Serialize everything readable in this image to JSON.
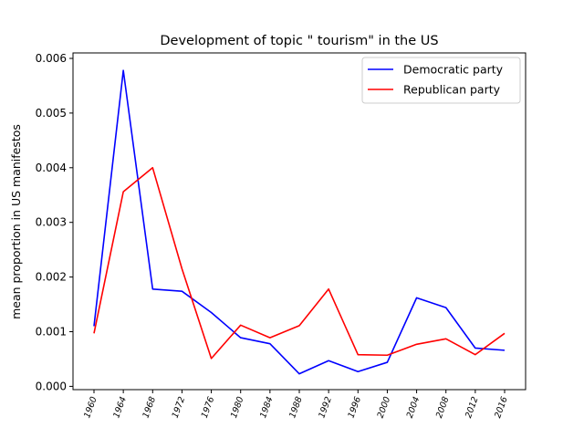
{
  "chart_data": {
    "type": "line",
    "title": "Development of topic \" tourism\" in the US",
    "xlabel": "",
    "ylabel": "mean proportion in US manifestos",
    "x": [
      "1960",
      "1964",
      "1968",
      "1972",
      "1976",
      "1980",
      "1984",
      "1988",
      "1992",
      "1996",
      "2000",
      "2004",
      "2008",
      "2012",
      "2016"
    ],
    "y_ticks": [
      "0.000",
      "0.001",
      "0.002",
      "0.003",
      "0.004",
      "0.005",
      "0.006"
    ],
    "ylim": [
      -6e-05,
      0.0061
    ],
    "grid": false,
    "legend_position": "top-right",
    "series": [
      {
        "name": "Democratic party",
        "color": "#0000ff",
        "values": [
          0.0011,
          0.00578,
          0.00178,
          0.00174,
          0.00135,
          0.00089,
          0.00078,
          0.00023,
          0.00047,
          0.00027,
          0.00044,
          0.00162,
          0.00144,
          0.0007,
          0.00066
        ]
      },
      {
        "name": "Republican party",
        "color": "#ff0000",
        "values": [
          0.00097,
          0.00356,
          0.004,
          0.00215,
          0.00051,
          0.00112,
          0.00089,
          0.00111,
          0.00178,
          0.00058,
          0.00057,
          0.00077,
          0.00087,
          0.00058,
          0.00097
        ]
      }
    ]
  }
}
